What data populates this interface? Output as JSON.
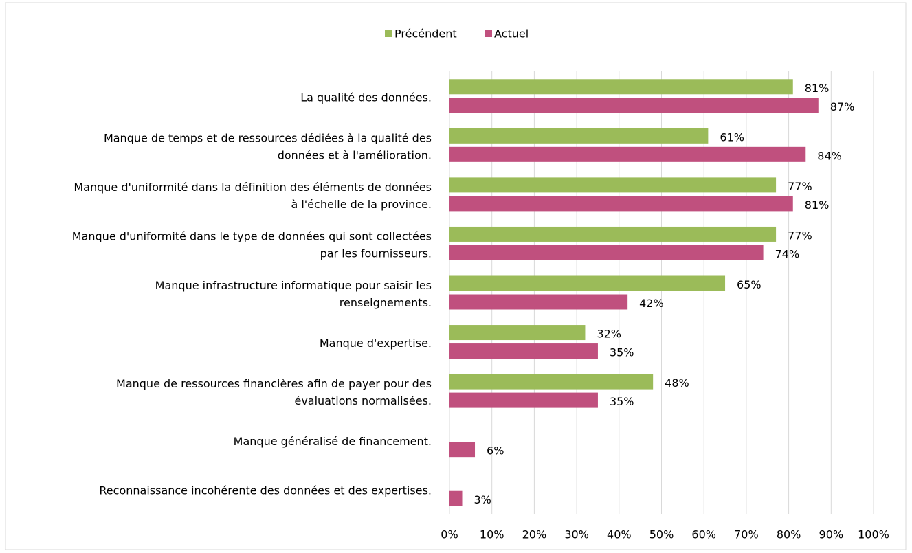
{
  "chart_data": {
    "type": "bar",
    "orientation": "horizontal",
    "categories": [
      [
        "La qualité des données."
      ],
      [
        "Manque de temps et de ressources dédiées à la qualité des",
        "données et à l'amélioration."
      ],
      [
        "Manque d'uniformité dans la définition des éléments de données",
        "à l'échelle de la province."
      ],
      [
        "Manque d'uniformité dans le type de données qui sont collectées",
        "par les fournisseurs."
      ],
      [
        "Manque infrastructure informatique pour saisir les",
        "renseignements."
      ],
      [
        "Manque d'expertise."
      ],
      [
        "Manque de ressources financières afin de payer pour des",
        "évaluations normalisées."
      ],
      [
        "Manque généralisé de financement."
      ],
      [
        "Reconnaissance incohérente des données et des expertises."
      ]
    ],
    "series": [
      {
        "name": "Précéndent",
        "color": "#9bbb59",
        "values": [
          81,
          61,
          77,
          77,
          65,
          32,
          48,
          null,
          null
        ],
        "value_labels": [
          "81%",
          "61%",
          "77%",
          "77%",
          "65%",
          "32%",
          "48%",
          null,
          null
        ]
      },
      {
        "name": "Actuel",
        "color": "#c0507e",
        "values": [
          87,
          84,
          81,
          74,
          42,
          35,
          35,
          6,
          3
        ],
        "value_labels": [
          "87%",
          "84%",
          "81%",
          "74%",
          "42%",
          "35%",
          "35%",
          "6%",
          "3%"
        ]
      }
    ],
    "xlim": [
      0,
      100
    ],
    "xticks": [
      {
        "value": 0,
        "label": "0%"
      },
      {
        "value": 10,
        "label": "10%"
      },
      {
        "value": 20,
        "label": "20%"
      },
      {
        "value": 30,
        "label": "30%"
      },
      {
        "value": 40,
        "label": "40%"
      },
      {
        "value": 50,
        "label": "50%"
      },
      {
        "value": 60,
        "label": "60%"
      },
      {
        "value": 70,
        "label": "70%"
      },
      {
        "value": 80,
        "label": "80%"
      },
      {
        "value": 90,
        "label": "90%"
      },
      {
        "value": 100,
        "label": "100%"
      }
    ],
    "grid": true,
    "legend": "top"
  }
}
